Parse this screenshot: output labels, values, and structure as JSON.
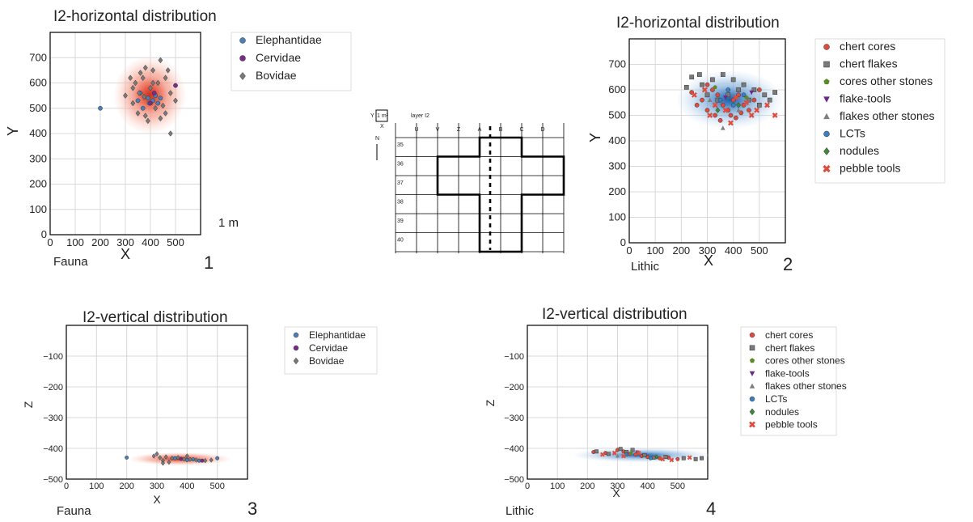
{
  "colors": {
    "Elephantidae": "#4a7fb8",
    "Cervidae": "#7b2a8c",
    "Bovidae": "#7a7a7a",
    "chert cores": "#e04b3b",
    "chert flakes": "#7a7a7a",
    "cores other stones": "#5a8a2a",
    "flake-tools": "#6a2a8c",
    "flakes other stones": "#808080",
    "LCTs": "#3a7fc0",
    "nodules": "#3a8a3a",
    "pebble tools": "#e04b3b",
    "kde_red": "#e8553f",
    "kde_blue": "#4a86c5"
  },
  "chart_data": [
    {
      "id": "panel1",
      "type": "scatter",
      "title": "I2-horizontal distribution",
      "xlabel": "X",
      "ylabel": "Y",
      "xlim": [
        0,
        600
      ],
      "ylim": [
        0,
        800
      ],
      "xticks": [
        "0",
        "100",
        "200",
        "300",
        "400",
        "500"
      ],
      "yticks": [
        "0",
        "100",
        "200",
        "300",
        "400",
        "500",
        "600",
        "700"
      ],
      "grid": true,
      "legend_position": "right",
      "caption": "Fauna",
      "scale_note": "1 m",
      "panel_number": "1",
      "kde_color": "red",
      "series": [
        {
          "name": "Elephantidae",
          "marker": "circle",
          "points": [
            [
              200,
              500
            ],
            [
              360,
              560
            ],
            [
              390,
              540
            ],
            [
              410,
              530
            ],
            [
              420,
              550
            ],
            [
              440,
              540
            ],
            [
              370,
              500
            ],
            [
              350,
              530
            ],
            [
              395,
              520
            ],
            [
              430,
              520
            ]
          ]
        },
        {
          "name": "Cervidae",
          "marker": "circle",
          "points": [
            [
              400,
              520
            ],
            [
              500,
              590
            ],
            [
              415,
              560
            ]
          ]
        },
        {
          "name": "Bovidae",
          "marker": "diamond",
          "points": [
            [
              320,
              620
            ],
            [
              340,
              600
            ],
            [
              360,
              640
            ],
            [
              380,
              660
            ],
            [
              410,
              650
            ],
            [
              440,
              690
            ],
            [
              470,
              650
            ],
            [
              330,
              580
            ],
            [
              355,
              560
            ],
            [
              375,
              545
            ],
            [
              400,
              580
            ],
            [
              430,
              600
            ],
            [
              460,
              620
            ],
            [
              480,
              560
            ],
            [
              500,
              530
            ],
            [
              330,
              520
            ],
            [
              350,
              480
            ],
            [
              380,
              470
            ],
            [
              420,
              500
            ],
            [
              450,
              510
            ],
            [
              370,
              620
            ],
            [
              410,
              600
            ],
            [
              480,
              400
            ],
            [
              300,
              550
            ],
            [
              390,
              450
            ],
            [
              440,
              460
            ],
            [
              460,
              480
            ]
          ]
        }
      ]
    },
    {
      "id": "panel2",
      "type": "scatter",
      "title": "I2-horizontal distribution",
      "xlabel": "X",
      "ylabel": "Y",
      "xlim": [
        0,
        600
      ],
      "ylim": [
        0,
        800
      ],
      "xticks": [
        "0",
        "100",
        "200",
        "300",
        "400",
        "500"
      ],
      "yticks": [
        "0",
        "100",
        "200",
        "300",
        "400",
        "500",
        "600",
        "700"
      ],
      "grid": true,
      "legend_position": "right",
      "caption": "Lithic",
      "panel_number": "2",
      "kde_color": "blue",
      "series": [
        {
          "name": "chert cores",
          "marker": "circle",
          "points": [
            [
              240,
              590
            ],
            [
              280,
              560
            ],
            [
              300,
              520
            ],
            [
              320,
              600
            ],
            [
              340,
              580
            ],
            [
              360,
              540
            ],
            [
              380,
              520
            ],
            [
              400,
              560
            ],
            [
              420,
              580
            ],
            [
              440,
              540
            ],
            [
              460,
              520
            ],
            [
              480,
              560
            ],
            [
              500,
              600
            ],
            [
              330,
              500
            ],
            [
              350,
              480
            ],
            [
              390,
              500
            ],
            [
              410,
              490
            ],
            [
              430,
              510
            ],
            [
              260,
              540
            ],
            [
              300,
              620
            ]
          ]
        },
        {
          "name": "chert flakes",
          "marker": "square",
          "points": [
            [
              240,
              650
            ],
            [
              280,
              620
            ],
            [
              320,
              640
            ],
            [
              360,
              660
            ],
            [
              400,
              640
            ],
            [
              440,
              620
            ],
            [
              480,
              600
            ],
            [
              520,
              580
            ],
            [
              560,
              590
            ],
            [
              300,
              580
            ],
            [
              340,
              560
            ],
            [
              380,
              580
            ],
            [
              420,
              600
            ],
            [
              460,
              560
            ],
            [
              500,
              540
            ],
            [
              540,
              560
            ],
            [
              220,
              610
            ],
            [
              270,
              660
            ]
          ]
        },
        {
          "name": "cores other stones",
          "marker": "pentagon",
          "points": [
            [
              330,
              610
            ],
            [
              450,
              570
            ]
          ]
        },
        {
          "name": "flake-tools",
          "marker": "triangle-down",
          "points": [
            [
              370,
              570
            ],
            [
              470,
              590
            ]
          ]
        },
        {
          "name": "flakes other stones",
          "marker": "triangle",
          "points": [
            [
              360,
              450
            ],
            [
              420,
              520
            ],
            [
              310,
              560
            ]
          ]
        },
        {
          "name": "LCTs",
          "marker": "circle",
          "points": [
            [
              350,
              560
            ],
            [
              400,
              540
            ],
            [
              440,
              580
            ],
            [
              380,
              600
            ]
          ]
        },
        {
          "name": "nodules",
          "marker": "diamond",
          "points": [
            [
              420,
              540
            ],
            [
              340,
              520
            ]
          ]
        },
        {
          "name": "pebble tools",
          "marker": "cross",
          "points": [
            [
              250,
              580
            ],
            [
              290,
              600
            ],
            [
              330,
              540
            ],
            [
              370,
              520
            ],
            [
              410,
              570
            ],
            [
              450,
              550
            ],
            [
              490,
              520
            ],
            [
              530,
              540
            ],
            [
              310,
              500
            ],
            [
              390,
              470
            ],
            [
              470,
              500
            ],
            [
              560,
              500
            ]
          ]
        }
      ]
    },
    {
      "id": "panel3",
      "type": "scatter",
      "title": "I2-vertical distribution",
      "xlabel": "X",
      "ylabel": "Z",
      "xlim": [
        0,
        600
      ],
      "ylim": [
        -500,
        0
      ],
      "xticks": [
        "0",
        "100",
        "200",
        "300",
        "400",
        "500"
      ],
      "yticks": [
        "−500",
        "−400",
        "−300",
        "−200",
        "−100"
      ],
      "grid": true,
      "legend_position": "right",
      "caption": "Fauna",
      "panel_number": "3",
      "kde_color": "red",
      "series": [
        {
          "name": "Elephantidae",
          "marker": "circle",
          "points": [
            [
              200,
              -430
            ],
            [
              360,
              -432
            ],
            [
              400,
              -438
            ],
            [
              420,
              -436
            ],
            [
              440,
              -440
            ],
            [
              500,
              -432
            ]
          ]
        },
        {
          "name": "Cervidae",
          "marker": "circle",
          "points": [
            [
              380,
              -434
            ],
            [
              450,
              -440
            ]
          ]
        },
        {
          "name": "Bovidae",
          "marker": "diamond",
          "points": [
            [
              290,
              -425
            ],
            [
              310,
              -430
            ],
            [
              330,
              -428
            ],
            [
              350,
              -432
            ],
            [
              370,
              -430
            ],
            [
              390,
              -435
            ],
            [
              410,
              -436
            ],
            [
              430,
              -438
            ],
            [
              460,
              -440
            ],
            [
              480,
              -438
            ],
            [
              320,
              -440
            ],
            [
              340,
              -445
            ],
            [
              300,
              -418
            ],
            [
              400,
              -425
            ],
            [
              320,
              -448
            ]
          ]
        }
      ]
    },
    {
      "id": "panel4",
      "type": "scatter",
      "title": "I2-vertical distribution",
      "xlabel": "X",
      "ylabel": "Z",
      "xlim": [
        0,
        600
      ],
      "ylim": [
        -500,
        0
      ],
      "xticks": [
        "0",
        "100",
        "200",
        "300",
        "400",
        "500"
      ],
      "yticks": [
        "−500",
        "−400",
        "−300",
        "−200",
        "−100"
      ],
      "grid": true,
      "legend_position": "right",
      "caption": "Lithic",
      "panel_number": "4",
      "kde_color": "blue",
      "series": [
        {
          "name": "chert cores",
          "marker": "circle",
          "points": [
            [
              220,
              -412
            ],
            [
              260,
              -415
            ],
            [
              300,
              -405
            ],
            [
              320,
              -410
            ],
            [
              340,
              -418
            ],
            [
              360,
              -420
            ],
            [
              380,
              -425
            ],
            [
              400,
              -428
            ],
            [
              440,
              -432
            ],
            [
              470,
              -430
            ],
            [
              500,
              -435
            ]
          ]
        },
        {
          "name": "chert flakes",
          "marker": "square",
          "points": [
            [
              230,
              -410
            ],
            [
              270,
              -418
            ],
            [
              310,
              -402
            ],
            [
              330,
              -412
            ],
            [
              350,
              -405
            ],
            [
              390,
              -422
            ],
            [
              420,
              -430
            ],
            [
              460,
              -428
            ],
            [
              520,
              -432
            ],
            [
              560,
              -435
            ],
            [
              580,
              -432
            ]
          ]
        },
        {
          "name": "cores other stones",
          "marker": "pentagon",
          "points": [
            [
              345,
              -415
            ]
          ]
        },
        {
          "name": "flake-tools",
          "marker": "triangle-down",
          "points": [
            [
              365,
              -412
            ]
          ]
        },
        {
          "name": "flakes other stones",
          "marker": "triangle",
          "points": [
            [
              300,
              -425
            ]
          ]
        },
        {
          "name": "LCTs",
          "marker": "circle",
          "points": [
            [
              330,
              -420
            ],
            [
              410,
              -432
            ]
          ]
        },
        {
          "name": "nodules",
          "marker": "diamond",
          "points": [
            [
              430,
              -428
            ]
          ]
        },
        {
          "name": "pebble tools",
          "marker": "cross",
          "points": [
            [
              250,
              -420
            ],
            [
              290,
              -415
            ],
            [
              320,
              -425
            ],
            [
              370,
              -415
            ],
            [
              450,
              -435
            ],
            [
              480,
              -438
            ],
            [
              540,
              -430
            ]
          ]
        }
      ]
    }
  ],
  "map": {
    "scale_label": "1 m²",
    "y_label": "Y",
    "x_label": "X",
    "layer_label": "layer I2",
    "north_label": "N",
    "columns": [
      "U",
      "V",
      "Z",
      "A",
      "B",
      "C",
      "D"
    ],
    "rows": [
      "35",
      "36",
      "37",
      "38",
      "39",
      "40"
    ]
  }
}
